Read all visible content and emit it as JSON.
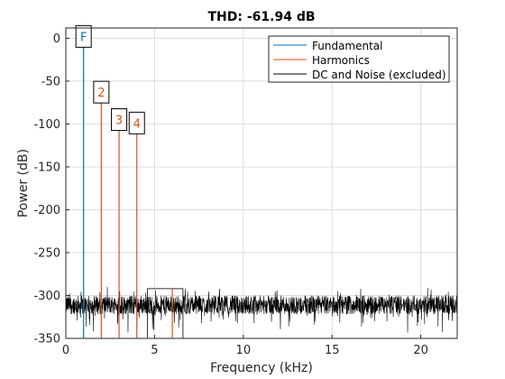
{
  "chart_data": {
    "type": "line",
    "title": "THD: -61.94 dB",
    "xlabel": "Frequency (kHz)",
    "ylabel": "Power (dB)",
    "xlim": [
      0,
      22.05
    ],
    "ylim": [
      -350,
      12
    ],
    "xticks": [
      0,
      5,
      10,
      15,
      20
    ],
    "yticks": [
      0,
      -50,
      -100,
      -150,
      -200,
      -250,
      -300,
      -350
    ],
    "grid": true,
    "legend": "top-right",
    "series": [
      {
        "name": "Fundamental",
        "color": "#0072BD",
        "x": [
          1,
          1
        ],
        "y": [
          -350,
          -1
        ]
      },
      {
        "name": "Harmonics",
        "color": "#D95319",
        "segments": [
          {
            "x": [
              2,
              2
            ],
            "y": [
              -350,
              -66
            ]
          },
          {
            "x": [
              3,
              3
            ],
            "y": [
              -350,
              -98
            ]
          },
          {
            "x": [
              4,
              4
            ],
            "y": [
              -350,
              -102
            ]
          },
          {
            "x": [
              6,
              6
            ],
            "y": [
              -350,
              -292
            ]
          }
        ]
      },
      {
        "name": "DC and Noise (excluded)",
        "color": "#000000",
        "noise_mean": -311,
        "noise_range": [
          -345,
          -290
        ]
      }
    ],
    "annotations": [
      {
        "text": "F",
        "x": 1,
        "y": -1,
        "color": "#0072BD"
      },
      {
        "text": "2",
        "x": 2,
        "y": -66,
        "color": "#D95319"
      },
      {
        "text": "3",
        "x": 3,
        "y": -98,
        "color": "#D95319"
      },
      {
        "text": "4",
        "x": 4,
        "y": -102,
        "color": "#D95319"
      }
    ],
    "noise_window": {
      "x": [
        4.6,
        6.6
      ],
      "y": [
        -350,
        -292
      ]
    }
  }
}
